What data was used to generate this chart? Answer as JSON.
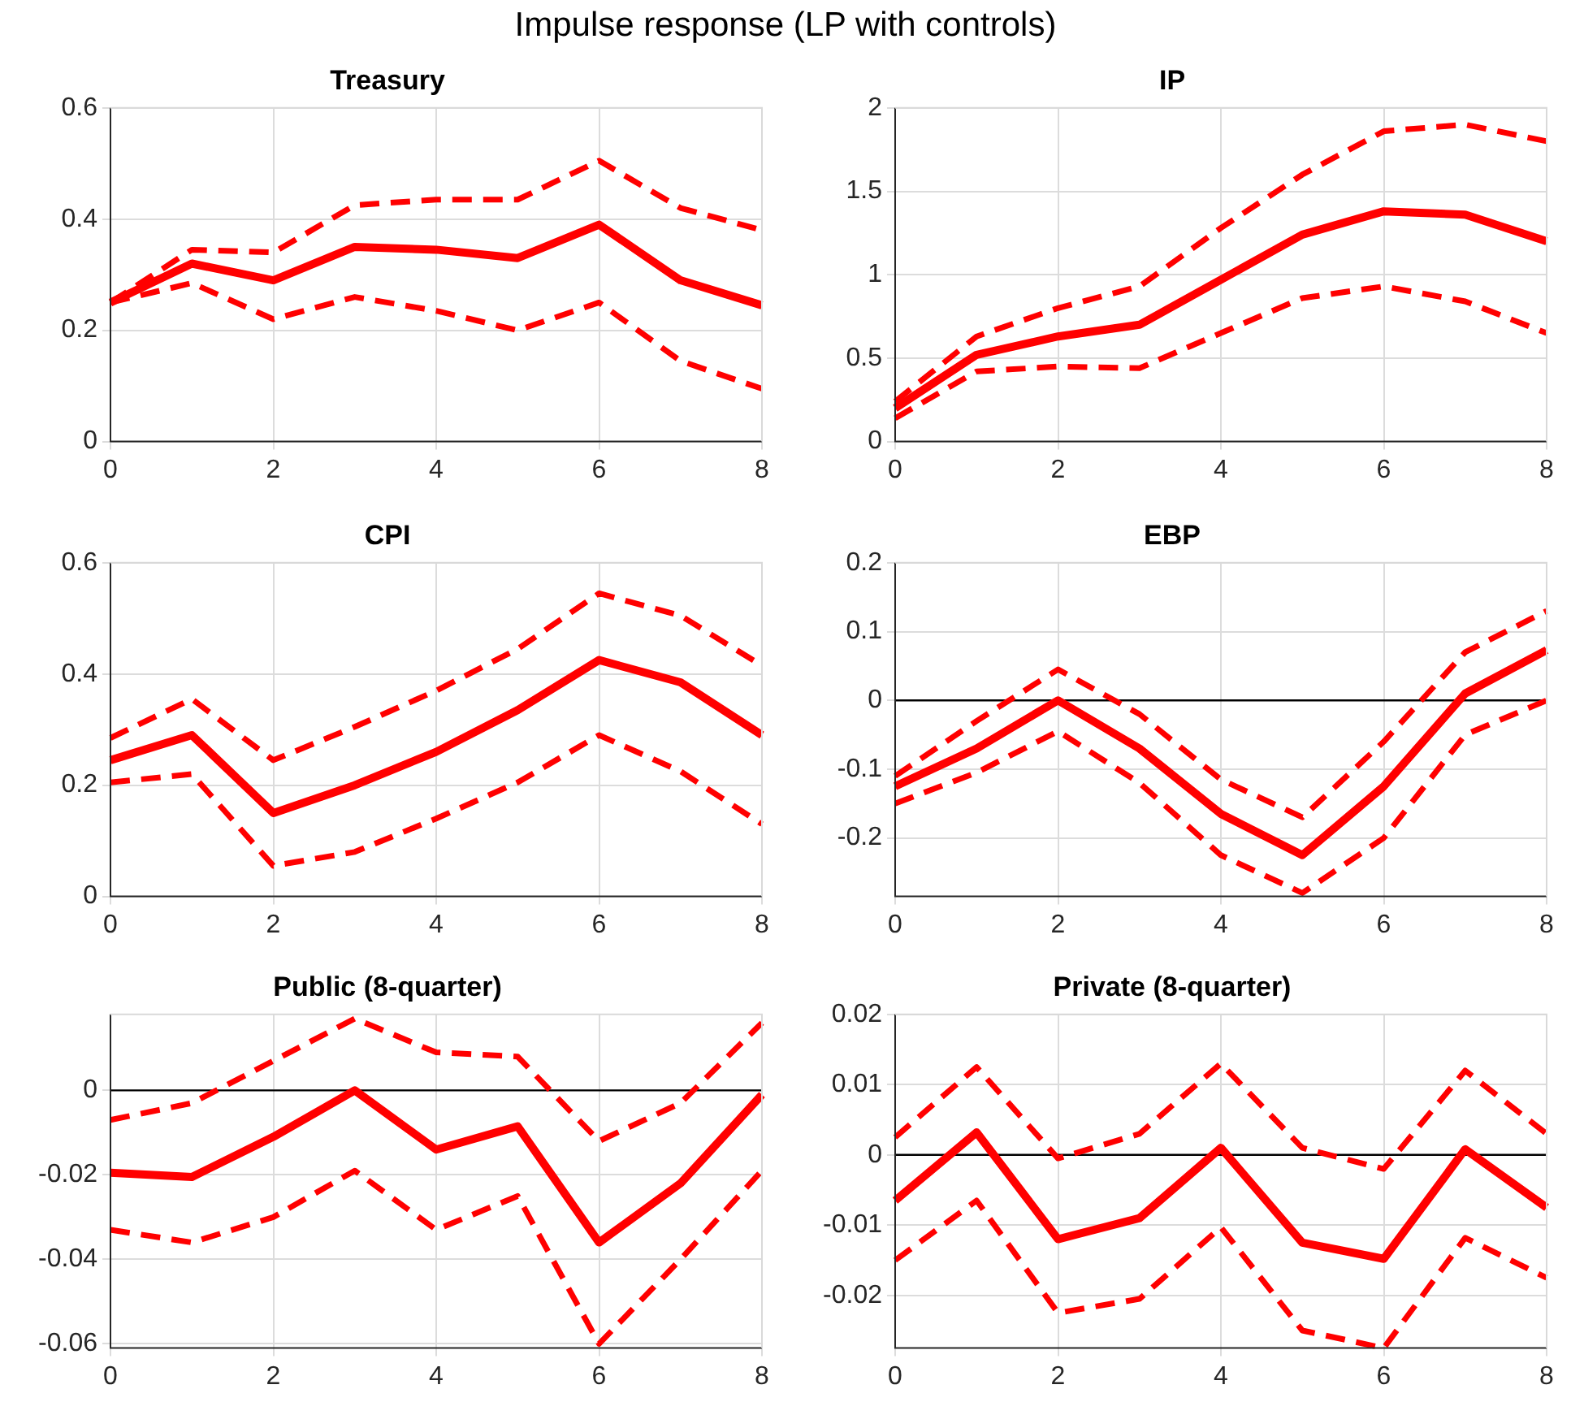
{
  "chart_data": [
    {
      "type": "line",
      "title": "Treasury",
      "annotations": [
        "Impulse response (LP with controls)"
      ],
      "x": [
        0,
        1,
        2,
        3,
        4,
        5,
        6,
        7,
        8
      ],
      "xlim": [
        0,
        8
      ],
      "xticks": [
        0,
        2,
        4,
        6,
        8
      ],
      "ylim": [
        0,
        0.6
      ],
      "yticks": [
        0,
        0.2,
        0.4,
        0.6
      ],
      "grid": true,
      "marker": "none",
      "series": [
        {
          "color": "#ff0000",
          "line_style": "solid",
          "values": [
            0.25,
            0.32,
            0.29,
            0.35,
            0.345,
            0.33,
            0.39,
            0.29,
            0.245
          ]
        },
        {
          "color": "#ff0000",
          "line_style": "dashed",
          "values": [
            0.25,
            0.345,
            0.34,
            0.425,
            0.435,
            0.435,
            0.505,
            0.42,
            0.38
          ]
        },
        {
          "color": "#ff0000",
          "line_style": "dashed",
          "values": [
            0.25,
            0.285,
            0.22,
            0.26,
            0.235,
            0.2,
            0.25,
            0.145,
            0.095
          ]
        }
      ]
    },
    {
      "type": "line",
      "title": "IP",
      "x": [
        0,
        1,
        2,
        3,
        4,
        5,
        6,
        7,
        8
      ],
      "xlim": [
        0,
        8
      ],
      "xticks": [
        0,
        2,
        4,
        6,
        8
      ],
      "ylim": [
        0,
        2
      ],
      "yticks": [
        0,
        0.5,
        1,
        1.5,
        2
      ],
      "grid": true,
      "marker": "none",
      "series": [
        {
          "color": "#ff0000",
          "line_style": "solid",
          "values": [
            0.2,
            0.52,
            0.63,
            0.7,
            0.97,
            1.24,
            1.38,
            1.36,
            1.2
          ]
        },
        {
          "color": "#ff0000",
          "line_style": "dashed",
          "values": [
            0.24,
            0.63,
            0.8,
            0.93,
            1.28,
            1.6,
            1.86,
            1.9,
            1.8
          ]
        },
        {
          "color": "#ff0000",
          "line_style": "dashed",
          "values": [
            0.14,
            0.42,
            0.45,
            0.44,
            0.65,
            0.86,
            0.93,
            0.84,
            0.65
          ]
        }
      ]
    },
    {
      "type": "line",
      "title": "CPI",
      "x": [
        0,
        1,
        2,
        3,
        4,
        5,
        6,
        7,
        8
      ],
      "xlim": [
        0,
        8
      ],
      "xticks": [
        0,
        2,
        4,
        6,
        8
      ],
      "ylim": [
        0,
        0.6
      ],
      "yticks": [
        0,
        0.2,
        0.4,
        0.6
      ],
      "grid": true,
      "marker": "none",
      "series": [
        {
          "color": "#ff0000",
          "line_style": "solid",
          "values": [
            0.245,
            0.29,
            0.15,
            0.2,
            0.26,
            0.335,
            0.425,
            0.385,
            0.29
          ]
        },
        {
          "color": "#ff0000",
          "line_style": "dashed",
          "values": [
            0.285,
            0.355,
            0.245,
            0.305,
            0.37,
            0.445,
            0.545,
            0.505,
            0.415
          ]
        },
        {
          "color": "#ff0000",
          "line_style": "dashed",
          "values": [
            0.205,
            0.22,
            0.055,
            0.08,
            0.14,
            0.205,
            0.29,
            0.225,
            0.13
          ]
        }
      ]
    },
    {
      "type": "line",
      "title": "EBP",
      "x": [
        0,
        1,
        2,
        3,
        4,
        5,
        6,
        7,
        8
      ],
      "xlim": [
        0,
        8
      ],
      "xticks": [
        0,
        2,
        4,
        6,
        8
      ],
      "ylim": [
        -0.285,
        0.2
      ],
      "yticks": [
        -0.2,
        -0.1,
        0,
        0.1,
        0.2
      ],
      "grid": true,
      "marker": "none",
      "ref_lines": [
        {
          "axis": "y",
          "value": 0,
          "color": "#000000"
        }
      ],
      "series": [
        {
          "color": "#ff0000",
          "line_style": "solid",
          "values": [
            -0.125,
            -0.07,
            0,
            -0.07,
            -0.165,
            -0.225,
            -0.125,
            0.01,
            0.073
          ]
        },
        {
          "color": "#ff0000",
          "line_style": "dashed",
          "values": [
            -0.11,
            -0.03,
            0.045,
            -0.02,
            -0.115,
            -0.17,
            -0.06,
            0.07,
            0.13
          ]
        },
        {
          "color": "#ff0000",
          "line_style": "dashed",
          "values": [
            -0.15,
            -0.105,
            -0.045,
            -0.12,
            -0.225,
            -0.28,
            -0.2,
            -0.05,
            0
          ]
        }
      ]
    },
    {
      "type": "line",
      "title": "Public (8-quarter)",
      "x": [
        0,
        1,
        2,
        3,
        4,
        5,
        6,
        7,
        8
      ],
      "xlim": [
        0,
        8
      ],
      "xticks": [
        0,
        2,
        4,
        6,
        8
      ],
      "ylim": [
        -0.061,
        0.018
      ],
      "yticks": [
        -0.06,
        -0.04,
        -0.02,
        0
      ],
      "grid": true,
      "marker": "none",
      "ref_lines": [
        {
          "axis": "y",
          "value": 0,
          "color": "#000000"
        }
      ],
      "series": [
        {
          "color": "#ff0000",
          "line_style": "solid",
          "values": [
            -0.0195,
            -0.0205,
            -0.011,
            0,
            -0.014,
            -0.0085,
            -0.036,
            -0.022,
            -0.001
          ]
        },
        {
          "color": "#ff0000",
          "line_style": "dashed",
          "values": [
            -0.007,
            -0.003,
            0.007,
            0.017,
            0.009,
            0.008,
            -0.012,
            -0.003,
            0.016
          ]
        },
        {
          "color": "#ff0000",
          "line_style": "dashed",
          "values": [
            -0.033,
            -0.036,
            -0.03,
            -0.019,
            -0.033,
            -0.025,
            -0.06,
            -0.04,
            -0.019
          ]
        }
      ]
    },
    {
      "type": "line",
      "title": "Private (8-quarter)",
      "x": [
        0,
        1,
        2,
        3,
        4,
        5,
        6,
        7,
        8
      ],
      "xlim": [
        0,
        8
      ],
      "xticks": [
        0,
        2,
        4,
        6,
        8
      ],
      "ylim": [
        -0.0275,
        0.02
      ],
      "yticks": [
        -0.02,
        -0.01,
        0,
        0.01,
        0.02
      ],
      "grid": true,
      "marker": "none",
      "ref_lines": [
        {
          "axis": "y",
          "value": 0,
          "color": "#000000"
        }
      ],
      "series": [
        {
          "color": "#ff0000",
          "line_style": "solid",
          "values": [
            -0.0065,
            0.0032,
            -0.012,
            -0.009,
            0.001,
            -0.0125,
            -0.0148,
            0.0008,
            -0.0075
          ]
        },
        {
          "color": "#ff0000",
          "line_style": "dashed",
          "values": [
            0.0025,
            0.0125,
            -0.0005,
            0.003,
            0.013,
            0.001,
            -0.002,
            0.012,
            0.003
          ]
        },
        {
          "color": "#ff0000",
          "line_style": "dashed",
          "values": [
            -0.015,
            -0.0065,
            -0.0225,
            -0.0205,
            -0.0103,
            -0.025,
            -0.0275,
            -0.0118,
            -0.0175
          ]
        }
      ]
    }
  ]
}
